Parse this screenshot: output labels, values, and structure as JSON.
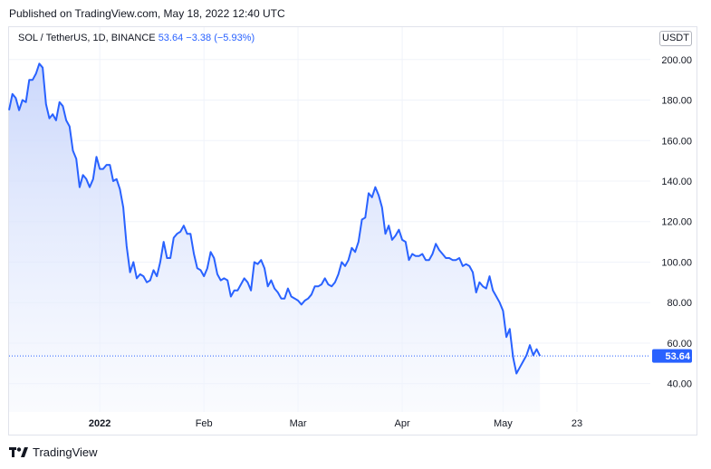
{
  "header": {
    "published_text": "Published on TradingView.com, May 18, 2022 12:40 UTC"
  },
  "legend": {
    "symbol": "SOL / TetherUS, 1D, BINANCE",
    "last": "53.64",
    "change": "−3.38",
    "change_pct": "(−5.93%)"
  },
  "currency_button": "USDT",
  "watermark": {
    "text": "TradingView"
  },
  "colors": {
    "line": "#2962ff",
    "area_top": "#c5d3fb",
    "area_bottom": "#f4f7fe",
    "grid": "#f0f3fa",
    "price_label_bg": "#2962ff"
  },
  "chart_data": {
    "type": "area",
    "title": "SOL / TetherUS, 1D, BINANCE",
    "x_start": "2021-12-05",
    "x_end": "2022-05-18",
    "ylim": [
      26,
      216
    ],
    "yticks": [
      40,
      60,
      80,
      100,
      120,
      140,
      160,
      180,
      200
    ],
    "ytick_labels": [
      "40.00",
      "60.00",
      "80.00",
      "100.00",
      "120.00",
      "140.00",
      "160.00",
      "180.00",
      "200.00"
    ],
    "xticks": [
      {
        "label": "2022",
        "date": "2022-01-01"
      },
      {
        "label": "Feb",
        "date": "2022-02-01"
      },
      {
        "label": "Mar",
        "date": "2022-03-01"
      },
      {
        "label": "Apr",
        "date": "2022-04-01"
      },
      {
        "label": "May",
        "date": "2022-05-01"
      },
      {
        "label": "23",
        "date": "2022-05-23"
      }
    ],
    "last_value": 53.64,
    "last_value_label": "53.64",
    "grid": true,
    "series": [
      {
        "values": [
          175,
          183,
          181,
          175,
          180,
          179,
          190,
          190,
          193,
          198,
          196,
          178,
          171,
          173,
          170,
          179,
          177,
          170,
          167,
          155,
          151,
          137,
          143,
          141,
          137,
          141,
          152,
          146,
          146,
          148,
          148,
          140,
          141,
          136,
          127,
          108,
          95,
          100,
          92,
          94,
          93,
          90,
          91,
          96,
          93,
          100,
          110,
          102,
          102,
          112,
          114,
          115,
          118,
          114,
          114,
          104,
          97,
          96,
          93,
          97,
          105,
          102,
          94,
          91,
          92,
          91,
          83,
          86,
          86,
          89,
          92,
          90,
          86,
          100,
          99,
          101,
          97,
          88,
          91,
          87,
          85,
          82,
          82,
          87,
          83,
          82,
          81,
          79,
          81,
          82,
          84,
          88,
          88,
          89,
          92,
          89,
          88,
          90,
          94,
          100,
          98,
          101,
          107,
          105,
          110,
          121,
          122,
          134,
          132,
          137,
          133,
          127,
          114,
          118,
          111,
          113,
          116,
          111,
          110,
          101,
          104,
          103,
          103,
          104,
          101,
          101,
          104,
          109,
          106,
          104,
          102,
          102,
          101,
          101,
          102,
          98,
          99,
          98,
          95,
          85,
          90,
          88,
          87,
          93,
          86,
          83,
          80,
          76,
          63,
          67,
          53,
          45,
          48,
          51,
          54,
          59,
          54,
          57,
          53.64
        ]
      }
    ]
  }
}
